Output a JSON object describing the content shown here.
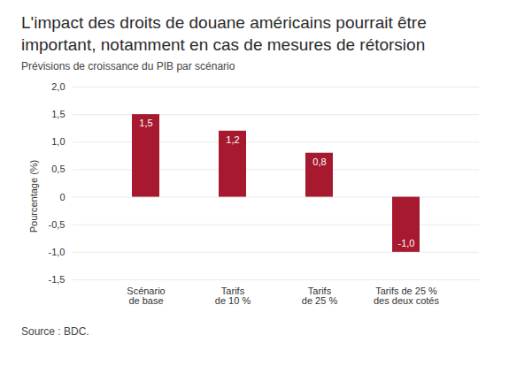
{
  "chart_data": {
    "type": "bar",
    "title": "L'impact des droits de douane américains pourrait être important, notamment en cas de mesures de rétorsion",
    "subtitle": "Prévisions de croissance du PIB par scénario",
    "y_label": "Pourcentage (%)",
    "source": "Source : BDC.",
    "categories": [
      "Scénario\nde base",
      "Tarifs\nde 10 %",
      "Tarifs\nde 25 %",
      "Tarifs de 25 %\ndes deux cotés"
    ],
    "values": [
      1.5,
      1.2,
      0.8,
      -1.0
    ],
    "value_labels": [
      "1,5",
      "1,2",
      "0,8",
      "-1,0"
    ],
    "data_labels": true,
    "color": "#a6192e",
    "ylim": [
      -1.5,
      2.0
    ],
    "yticks": [
      {
        "value": -1.5,
        "label": "-1,5"
      },
      {
        "value": -1.0,
        "label": "-1,0"
      },
      {
        "value": -0.5,
        "label": "-0,5"
      },
      0,
      {
        "value": 0.5,
        "label": "0,5"
      },
      {
        "value": 1.0,
        "label": "1,0"
      },
      {
        "value": 1.5,
        "label": "1,5"
      },
      {
        "value": 2.0,
        "label": "2,0"
      }
    ],
    "grid": true
  }
}
